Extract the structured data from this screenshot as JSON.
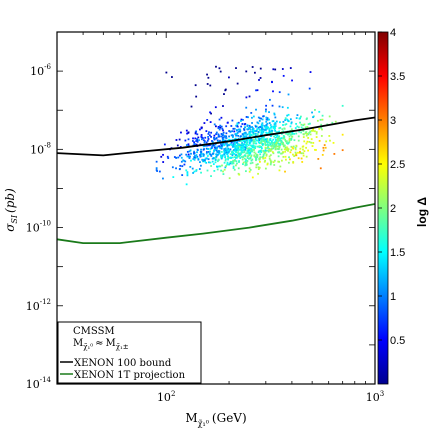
{
  "chart_data": {
    "type": "scatter",
    "xlabel": "M",
    "xlabel_sub": "χ̃₁⁰",
    "xlabel_unit": "(GeV)",
    "ylabel": "σ",
    "ylabel_sub": "SI",
    "ylabel_unit": "(pb)",
    "x_scale": "log",
    "y_scale": "log",
    "xlim": [
      30,
      1000
    ],
    "ylim": [
      1e-14,
      1e-05
    ],
    "x_ticks": [
      {
        "value": 100,
        "label": "10",
        "exp": "2"
      },
      {
        "value": 1000,
        "label": "10",
        "exp": "3"
      }
    ],
    "y_ticks": [
      {
        "value": 1e-06,
        "label": "10",
        "exp": "-6"
      },
      {
        "value": 1e-08,
        "label": "10",
        "exp": "-8"
      },
      {
        "value": 1e-10,
        "label": "10",
        "exp": "-10"
      },
      {
        "value": 1e-12,
        "label": "10",
        "exp": "-12"
      },
      {
        "value": 1e-14,
        "label": "10",
        "exp": "-14"
      }
    ],
    "colorbar": {
      "label": "log Δ",
      "range": [
        0,
        4
      ],
      "ticks": [
        {
          "value": 0.5,
          "label": "0.5"
        },
        {
          "value": 1,
          "label": "1"
        },
        {
          "value": 1.5,
          "label": "1.5"
        },
        {
          "value": 2,
          "label": "2"
        },
        {
          "value": 2.5,
          "label": "2.5"
        },
        {
          "value": 3,
          "label": "3"
        },
        {
          "value": 3.5,
          "label": "3.5"
        },
        {
          "value": 4,
          "label": "4"
        }
      ]
    },
    "series": [
      {
        "name": "XENON 100 bound",
        "type": "line",
        "color": "#000000",
        "points": [
          [
            30,
            8e-09
          ],
          [
            50,
            7e-09
          ],
          [
            80,
            9e-09
          ],
          [
            120,
            1.1e-08
          ],
          [
            200,
            1.6e-08
          ],
          [
            300,
            2.3e-08
          ],
          [
            450,
            3.2e-08
          ],
          [
            650,
            4.5e-08
          ],
          [
            800,
            5.5e-08
          ],
          [
            1000,
            6.5e-08
          ]
        ]
      },
      {
        "name": "XENON 1T projection",
        "type": "line",
        "color": "#1a7a1a",
        "points": [
          [
            30,
            5e-11
          ],
          [
            40,
            4e-11
          ],
          [
            60,
            4e-11
          ],
          [
            100,
            5.5e-11
          ],
          [
            150,
            7e-11
          ],
          [
            250,
            1e-10
          ],
          [
            400,
            1.5e-10
          ],
          [
            600,
            2.3e-10
          ],
          [
            800,
            3.2e-10
          ],
          [
            1000,
            4e-10
          ]
        ]
      }
    ],
    "scatter_region": {
      "x_range": [
        90,
        700
      ],
      "y_range": [
        3e-10,
        1.5e-06
      ],
      "dominant_lower_left": 0.6,
      "dominant_upper_right": 2.4
    },
    "legend": {
      "position": "bottom-left",
      "header": "CMSSM",
      "condition": "M",
      "condition_sub1": "χ̃₁⁰",
      "condition_rel": "≈",
      "condition_m2": "M",
      "condition_sub2": "χ̃₁±",
      "entries": [
        "XENON 100 bound",
        "XENON 1T projection"
      ]
    }
  }
}
